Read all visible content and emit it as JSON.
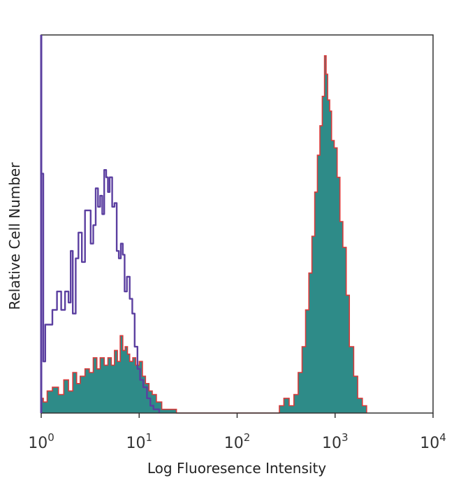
{
  "chart_data": {
    "type": "histogram",
    "x_scale": "log",
    "xlim": [
      1,
      10000
    ],
    "ylim": [
      0,
      100
    ],
    "xlabel": "Log Fluoresence Intensity",
    "ylabel": "Relative Cell Number",
    "x_ticks": [
      {
        "value": 1,
        "base": "10",
        "exp": "0"
      },
      {
        "value": 10,
        "base": "10",
        "exp": "1"
      },
      {
        "value": 100,
        "base": "10",
        "exp": "2"
      },
      {
        "value": 1000,
        "base": "10",
        "exp": "3"
      },
      {
        "value": 10000,
        "base": "10",
        "exp": "4"
      }
    ],
    "grid": false,
    "colors": {
      "isotype_line": "#5b3fa0",
      "stained_fill": "#2e8b88",
      "stained_line": "#d83a3a",
      "frame": "#333333"
    },
    "series": [
      {
        "style": "outline",
        "x": [
          1,
          1.05,
          1.1,
          1.2,
          1.3,
          1.45,
          1.6,
          1.75,
          1.9,
          2.0,
          2.1,
          2.25,
          2.4,
          2.6,
          2.8,
          3.0,
          3.2,
          3.4,
          3.6,
          3.8,
          4.0,
          4.2,
          4.4,
          4.6,
          4.8,
          5.0,
          5.3,
          5.6,
          5.9,
          6.2,
          6.5,
          6.8,
          7.1,
          7.5,
          8.0,
          8.5,
          9.0,
          9.6,
          10.2,
          11.0,
          12.0,
          13.0,
          14.0,
          16.0
        ],
        "y": [
          65,
          14,
          24,
          24,
          28,
          33,
          28,
          33,
          30,
          44,
          27,
          42,
          49,
          41,
          55,
          55,
          46,
          51,
          61,
          56,
          59,
          54,
          66,
          64,
          60,
          64,
          56,
          57,
          44,
          42,
          46,
          43,
          33,
          37,
          31,
          27,
          18,
          12,
          9,
          7,
          4,
          2,
          1,
          0
        ]
      },
      {
        "style": "filled",
        "x": [
          1,
          1.05,
          1.15,
          1.3,
          1.5,
          1.7,
          1.9,
          2.1,
          2.3,
          2.5,
          2.8,
          3.1,
          3.4,
          3.7,
          4.0,
          4.4,
          4.8,
          5.2,
          5.6,
          6.0,
          6.4,
          6.8,
          7.2,
          7.6,
          8.0,
          8.6,
          9.2,
          10.0,
          10.8,
          11.6,
          12.6,
          13.6,
          15.0,
          17.0,
          20.0,
          24.0,
          240,
          270,
          300,
          340,
          380,
          420,
          460,
          500,
          540,
          580,
          620,
          660,
          700,
          740,
          780,
          810,
          840,
          880,
          920,
          980,
          1050,
          1120,
          1200,
          1300,
          1400,
          1550,
          1700,
          1900,
          2100
        ],
        "y": [
          4,
          3,
          6,
          7,
          5,
          9,
          6,
          11,
          8,
          10,
          12,
          11,
          15,
          12,
          15,
          13,
          15,
          13,
          17,
          14,
          21,
          17,
          18,
          16,
          14,
          15,
          13,
          14,
          10,
          8,
          6,
          5,
          3,
          1,
          1,
          0,
          0,
          2,
          4,
          2,
          5,
          11,
          18,
          28,
          38,
          48,
          60,
          70,
          78,
          86,
          97,
          92,
          85,
          82,
          74,
          72,
          64,
          52,
          45,
          32,
          18,
          10,
          4,
          2,
          0
        ]
      }
    ]
  }
}
